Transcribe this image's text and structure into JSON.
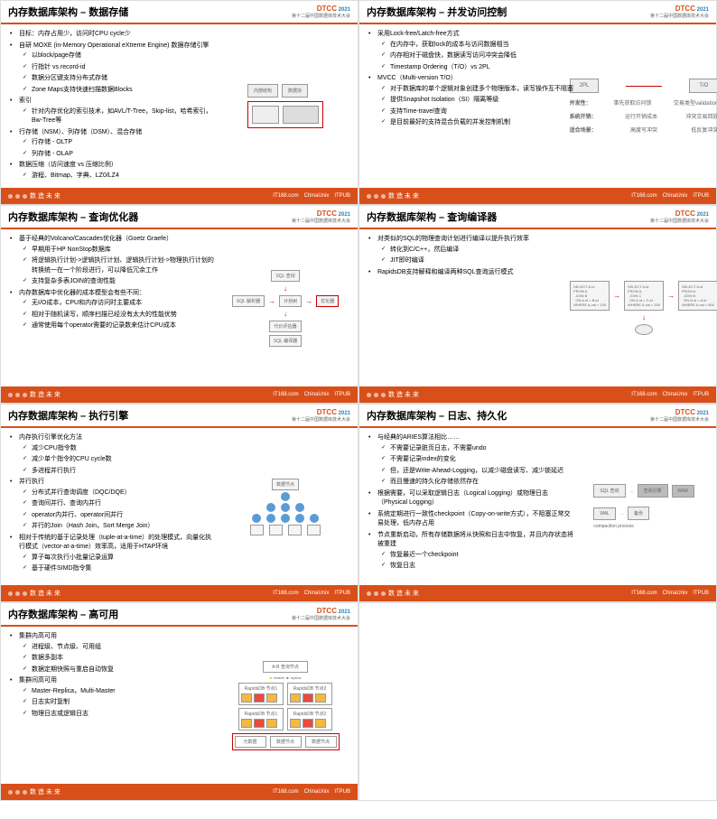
{
  "logo": {
    "name": "DTCC",
    "year": "2021",
    "subtitle": "第十二届中国数据库技术大会"
  },
  "footer": {
    "slogan": "数 造 未 来",
    "sponsors": [
      "IT168.com",
      "ChinaUnix",
      "ITPUB"
    ]
  },
  "slides": [
    {
      "title": "内存数据库架构 – 数据存储",
      "bullets": [
        {
          "text": "目标：内存占用少，访问时CPU cycle少"
        },
        {
          "text": "自研 MOXE (in-Memory Operational eXtreme Engine) 数据存储引擎",
          "sub": [
            "以block/page存储",
            "行指针 vs record-id",
            "数据分区键支持分布式存储",
            "Zone Maps支持快速扫描数据Blocks"
          ]
        },
        {
          "text": "索引",
          "sub": [
            "针对内存优化的索引技术，如AVL/T-Tree，Skip-list，哈希索引，Bw-Tree等"
          ]
        },
        {
          "text": "行存储（NSM）、列存储（DSM）、混合存储",
          "sub": [
            "行存储 - OLTP",
            "列存储 - OLAP"
          ]
        },
        {
          "text": "数据压缩（访问速度 vs 压缩比例）",
          "sub": [
            "游程、Bitmap、字典、LZ0/LZ4"
          ]
        }
      ],
      "diagram": "storage"
    },
    {
      "title": "内存数据库架构 – 并发访问控制",
      "bullets": [
        {
          "text": "采用Lock-free/Latch-free方式",
          "sub": [
            "在内存中，获取lock的成本与访问数据相当",
            "内存相对于磁盘快，数据读写访问冲突会降低",
            "Timestamp Ordering（T/O）vs 2PL"
          ]
        },
        {
          "text": "MVCC（Multi-version T/O）",
          "sub": [
            "对于数据库的单个逻辑对象创建多个物理版本，读写操作互不阻塞",
            "提供Snapshot Isolation（SI）隔离等级",
            "支持Time-travel查询",
            "是目前最好的支持混合负载的并发控制机制"
          ]
        }
      ],
      "diagram": "2pl",
      "diagram_data": {
        "left_box": "2PL",
        "right_box": "T/O",
        "rows": [
          [
            "并发性：",
            "事先获取访问锁",
            "交易类型validation"
          ],
          [
            "系统开销：",
            "运行开销成本",
            "冲突交易回放"
          ],
          [
            "适合场景：",
            "高度写冲突",
            "低反复冲突"
          ]
        ]
      }
    },
    {
      "title": "内存数据库架构 – 查询优化器",
      "bullets": [
        {
          "text": "基于经典的Volcano/Cascades优化器（Goetz Graefe）",
          "sub": [
            "早期用于HP NonStop数据库",
            "将逻辑执行计划->逻辑执行计划、逻辑执行计划->物理执行计划的转换统一在一个阶段进行，可以降低冗余工作",
            "支持复杂多表JOIN的查询性能"
          ]
        },
        {
          "text": "内存数据库中优化器的成本模型会有些不同：",
          "sub": [
            "无I/O成本，CPU和内存访问时主要成本",
            "相对于随机读写，顺序扫描已经没有太大的性能优势",
            "通常使用每个operator需要的记录数来估计CPU成本"
          ]
        }
      ],
      "diagram": "optimizer",
      "diagram_data": {
        "nodes": [
          "SQL 查询",
          "SQL 解析器",
          "计划树",
          "优化器",
          "执行计划",
          "SQL 编译器"
        ],
        "labels": [
          "代价评估器",
          "逻辑规则",
          "统计信息"
        ]
      }
    },
    {
      "title": "内存数据库架构 – 查询编译器",
      "bullets": [
        {
          "text": "对类似的SQL的物理查询计划进行编译以提升执行效率",
          "sub": [
            "转化到C/C++，然后编译",
            "JIT即时编译"
          ]
        },
        {
          "text": "RapidsDB支持解释和编译两种SQL查询运行模式"
        }
      ],
      "diagram": "compiler",
      "diagram_data": {
        "boxes": [
          "SELECT A.id\nFROM A\n  JOIN B\n  ON A.id = B.id\nWHERE A.val > 100",
          "SELECT A.id\nFROM A\n  JOIN C\n  ON A.id = C.id\nWHERE A.val > 150",
          "SELECT A.id\nFROM A\n  JOIN B\n  ON B.id = A.id\nWHERE A.val > 500"
        ]
      }
    },
    {
      "title": "内存数据库架构 – 执行引擎",
      "bullets": [
        {
          "text": "内存执行引擎优化方法",
          "sub": [
            "减少CPU指令数",
            "减少单个指令的CPU cycle数",
            "多进程并行执行"
          ]
        },
        {
          "text": "并行执行",
          "sub": [
            "分布式并行查询调度（DQC/DQE）",
            "查询间并行、查询内并行",
            "operator内并行、operator间并行",
            "并行的Join（Hash Join，Sort Merge Join）"
          ]
        },
        {
          "text": "相对于传统的基于记录处理（tuple-at-a-time）的处理模式，向量化执行模式（vector-at-a-time）效率高，适用于HTAP环境",
          "sub": [
            "算子每次执行小批量记录运算",
            "基于硬件SIMD指令集"
          ]
        }
      ],
      "diagram": "tree"
    },
    {
      "title": "内存数据库架构 – 日志、持久化",
      "bullets": [
        {
          "text": "与经典的ARIES算法相比……",
          "sub": [
            "不需要记录脏页日志，不需要undo",
            "不需要记录index的变化",
            "但，还是Write-Ahead-Logging，以减少磁盘读写、减少锁延迟",
            "而且慢速的持久化存储依然存在"
          ]
        },
        {
          "text": "根据需要，可以采取逻辑日志（Logical Logging）或物理日志（Physical Logging）"
        },
        {
          "text": "系统定期进行一致性checkpoint（Copy-on-write方式），不阻塞正常交易处理，低内存占用"
        },
        {
          "text": "节点重新启动，所有存储数据将从快照和日志中恢复，并且内存状态将被重建",
          "sub": [
            "恢复最近一个checkpoint",
            "恢复日志"
          ]
        }
      ],
      "diagram": "log",
      "diagram_data": {
        "boxes": [
          "SQL 查询",
          "查询引擎",
          "RAM",
          "WAL",
          "备份",
          "compaction process"
        ]
      }
    },
    {
      "title": "内存数据库架构 – 高可用",
      "bullets": [
        {
          "text": "集群内高可用",
          "sub": [
            "进程级、节点级、可用组",
            "数据多副本",
            "数据定期快照与重启自动恢复"
          ]
        },
        {
          "text": "集群间高可用",
          "sub": [
            "Master-Replica，Multi-Master",
            "日志实时复制",
            "物理日志或逻辑日志"
          ]
        }
      ],
      "diagram": "cluster",
      "diagram_data": {
        "top": "A-B 查询节点",
        "labels": [
          "master",
          "replica"
        ],
        "boxes": [
          "RapidsDB 节点1",
          "RapidsDB 节点2",
          "RapidsDB 节点1",
          "RapidsDB 节点2"
        ],
        "bottom": [
          "元数据",
          "数据节点",
          "数据节点",
          "存储集群"
        ]
      }
    }
  ]
}
